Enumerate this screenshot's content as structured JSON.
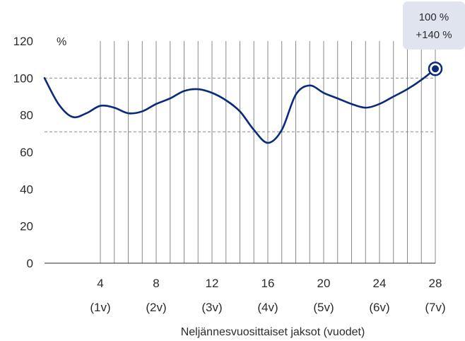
{
  "chart_data": {
    "type": "line",
    "y_unit": "%",
    "xlabel": "Neljännesvuosittaiset jaksot (vuodet)",
    "ylim": [
      0,
      120
    ],
    "y_ticks": [
      "0",
      "20",
      "40",
      "60",
      "80",
      "100",
      "120"
    ],
    "x_range": [
      0,
      28
    ],
    "x_ticks": [
      {
        "x": 4,
        "label": "4",
        "sub": "(1v)"
      },
      {
        "x": 8,
        "label": "8",
        "sub": "(2v)"
      },
      {
        "x": 12,
        "label": "12",
        "sub": "(3v)"
      },
      {
        "x": 16,
        "label": "16",
        "sub": "(4v)"
      },
      {
        "x": 20,
        "label": "20",
        "sub": "(5v)"
      },
      {
        "x": 24,
        "label": "24",
        "sub": "(6v)"
      },
      {
        "x": 28,
        "label": "28",
        "sub": "(7v)"
      }
    ],
    "vertical_gridlines_x": [
      4,
      5,
      6,
      7,
      8,
      9,
      10,
      11,
      12,
      13,
      14,
      15,
      16,
      17,
      18,
      19,
      20,
      21,
      22,
      23,
      24,
      25,
      26,
      27,
      28
    ],
    "reference_lines_y": [
      100,
      71
    ],
    "series": [
      {
        "color": "#0a2a7a",
        "points": [
          {
            "x": 0,
            "y": 100
          },
          {
            "x": 1,
            "y": 86
          },
          {
            "x": 2,
            "y": 79
          },
          {
            "x": 3,
            "y": 81
          },
          {
            "x": 4,
            "y": 85
          },
          {
            "x": 5,
            "y": 84
          },
          {
            "x": 6,
            "y": 81
          },
          {
            "x": 7,
            "y": 82
          },
          {
            "x": 8,
            "y": 86
          },
          {
            "x": 9,
            "y": 89
          },
          {
            "x": 10,
            "y": 93
          },
          {
            "x": 11,
            "y": 94
          },
          {
            "x": 12,
            "y": 92
          },
          {
            "x": 13,
            "y": 88
          },
          {
            "x": 14,
            "y": 82
          },
          {
            "x": 15,
            "y": 72
          },
          {
            "x": 16,
            "y": 65
          },
          {
            "x": 17,
            "y": 72
          },
          {
            "x": 18,
            "y": 91
          },
          {
            "x": 19,
            "y": 96
          },
          {
            "x": 20,
            "y": 92
          },
          {
            "x": 21,
            "y": 89
          },
          {
            "x": 22,
            "y": 86
          },
          {
            "x": 23,
            "y": 84
          },
          {
            "x": 24,
            "y": 86
          },
          {
            "x": 25,
            "y": 90
          },
          {
            "x": 26,
            "y": 94
          },
          {
            "x": 27,
            "y": 99
          },
          {
            "x": 28,
            "y": 105
          }
        ]
      }
    ],
    "callout": {
      "x": 28,
      "y": 105,
      "line1": "100 %",
      "line2": "+140 %",
      "bg": "#dfe4ee"
    },
    "colors": {
      "line": "#0a2a7a",
      "grid": "#8a8a8a",
      "dash": "#8a8a8a",
      "axis": "#2b2b2b"
    }
  }
}
